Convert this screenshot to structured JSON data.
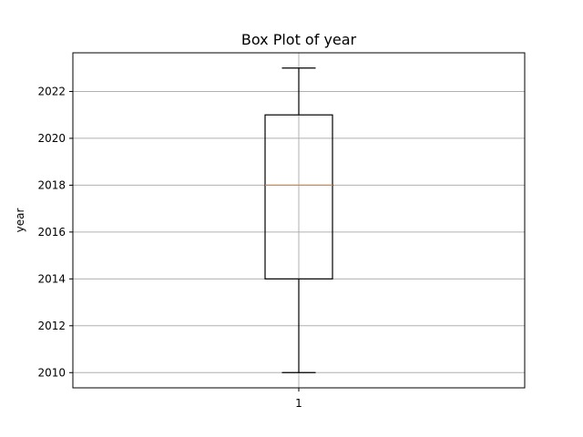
{
  "chart_data": {
    "type": "box",
    "title": "Box Plot of year",
    "xlabel": "",
    "ylabel": "year",
    "categories": [
      "1"
    ],
    "series": [
      {
        "whisker_low": 2010,
        "q1": 2014,
        "median": 2018,
        "q3": 2021,
        "whisker_high": 2023
      }
    ],
    "ylim": [
      2009.35,
      2023.65
    ],
    "yticks": [
      2010,
      2012,
      2014,
      2016,
      2018,
      2020,
      2022
    ],
    "grid": true,
    "colors": {
      "box": "#000000",
      "median": "#ff7f0e",
      "grid": "#b0b0b0"
    }
  }
}
